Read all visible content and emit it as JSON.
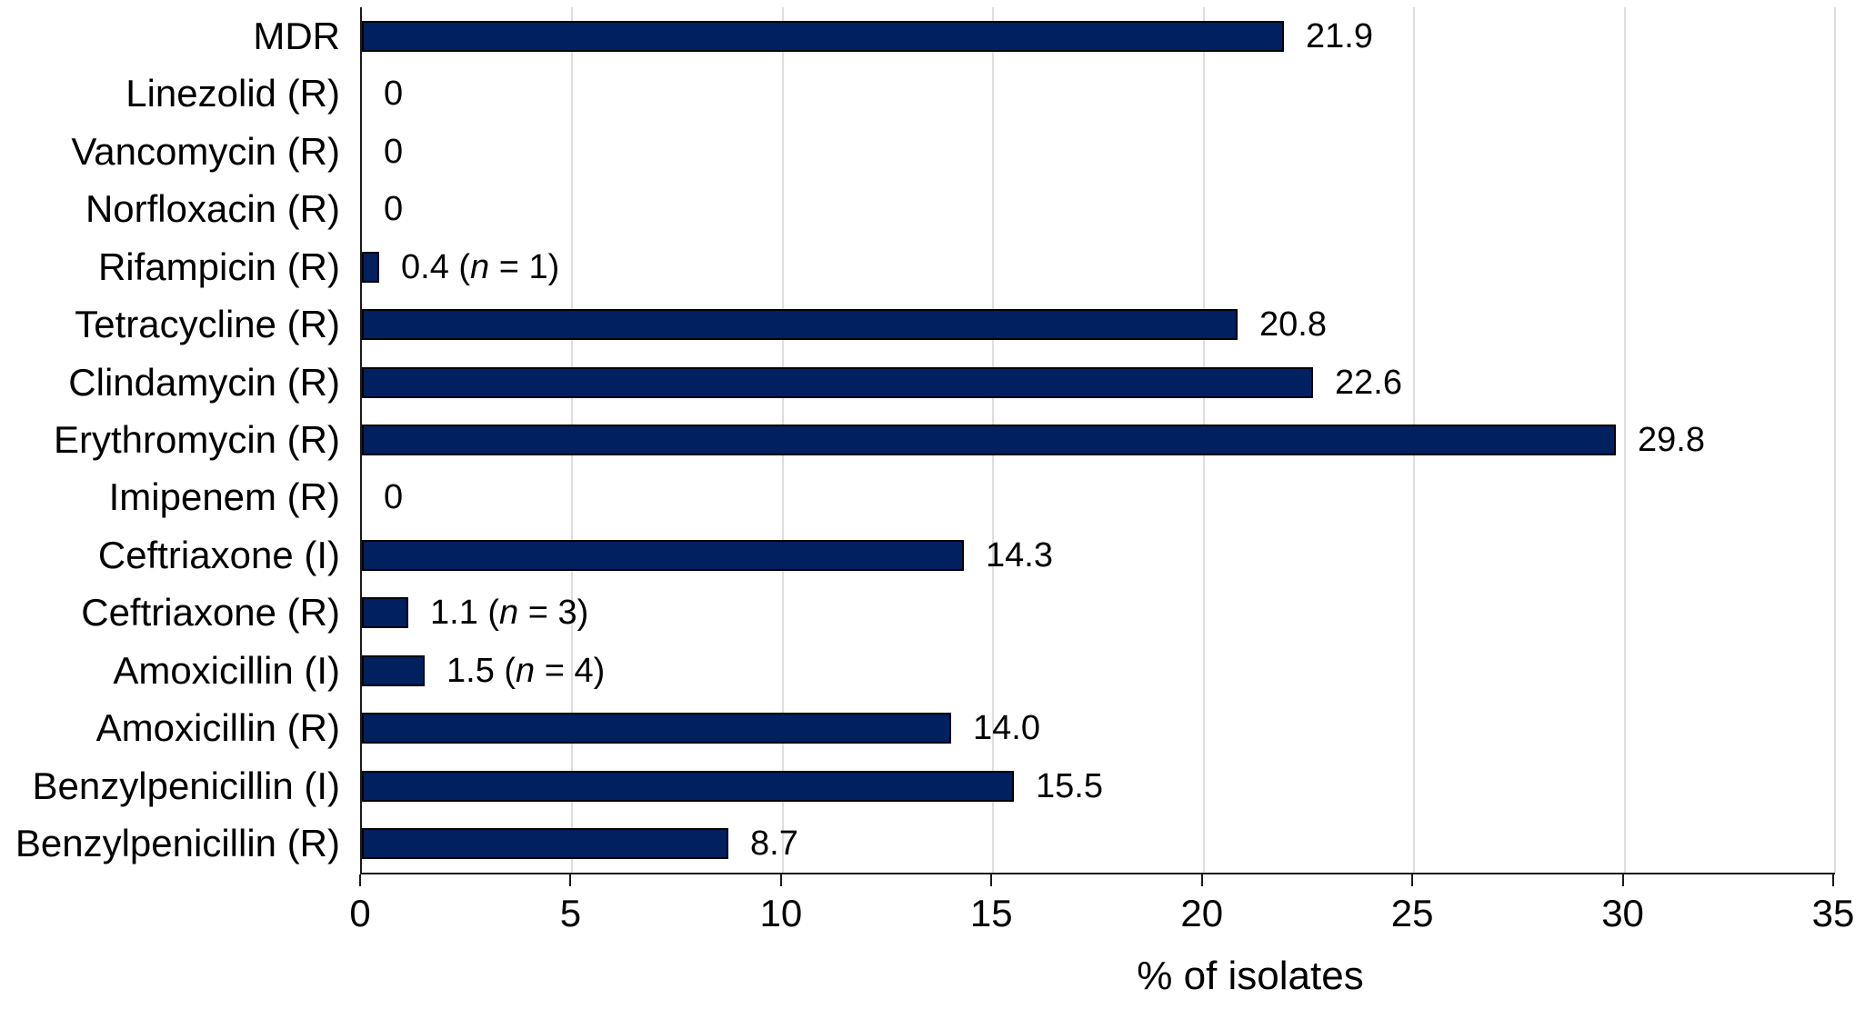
{
  "figure": {
    "background_color": "#FFFFFF",
    "text_color": "#000000"
  },
  "chart_data": {
    "type": "bar",
    "orientation": "horizontal",
    "title": "",
    "xlabel": "% of isolates",
    "ylabel": "",
    "xlim": [
      0,
      35
    ],
    "xticks": [
      0,
      5,
      10,
      15,
      20,
      25,
      30,
      35
    ],
    "grid": "vertical gridlines at every x tick, behind bars",
    "legend_position": "none",
    "bar_color": "#002060",
    "bar_border_color": "#000000",
    "gridline_color": "#DEDEDE",
    "axis_color": "#1A1A1A",
    "categories": [
      "MDR",
      "Linezolid (R)",
      "Vancomycin (R)",
      "Norfloxacin (R)",
      "Rifampicin (R)",
      "Tetracycline (R)",
      "Clindamycin (R)",
      "Erythromycin (R)",
      "Imipenem (R)",
      "Ceftriaxone (I)",
      "Ceftriaxone (R)",
      "Amoxicillin (I)",
      "Amoxicillin (R)",
      "Benzylpenicillin (I)",
      "Benzylpenicillin (R)"
    ],
    "rows": [
      {
        "category": "MDR",
        "value": 21.9,
        "value_text": "21.9",
        "n": null
      },
      {
        "category": "Linezolid (R)",
        "value": 0,
        "value_text": "0",
        "n": null
      },
      {
        "category": "Vancomycin (R)",
        "value": 0,
        "value_text": "0",
        "n": null
      },
      {
        "category": "Norfloxacin (R)",
        "value": 0,
        "value_text": "0",
        "n": null
      },
      {
        "category": "Rifampicin (R)",
        "value": 0.4,
        "value_text": "0.4",
        "n": 1
      },
      {
        "category": "Tetracycline (R)",
        "value": 20.8,
        "value_text": "20.8",
        "n": null
      },
      {
        "category": "Clindamycin (R)",
        "value": 22.6,
        "value_text": "22.6",
        "n": null
      },
      {
        "category": "Erythromycin (R)",
        "value": 29.8,
        "value_text": "29.8",
        "n": null
      },
      {
        "category": "Imipenem (R)",
        "value": 0,
        "value_text": "0",
        "n": null
      },
      {
        "category": "Ceftriaxone (I)",
        "value": 14.3,
        "value_text": "14.3",
        "n": null
      },
      {
        "category": "Ceftriaxone (R)",
        "value": 1.1,
        "value_text": "1.1",
        "n": 3
      },
      {
        "category": "Amoxicillin (I)",
        "value": 1.5,
        "value_text": "1.5",
        "n": 4
      },
      {
        "category": "Amoxicillin (R)",
        "value": 14.0,
        "value_text": "14.0",
        "n": null
      },
      {
        "category": "Benzylpenicillin (I)",
        "value": 15.5,
        "value_text": "15.5",
        "n": null
      },
      {
        "category": "Benzylpenicillin (R)",
        "value": 8.7,
        "value_text": "8.7",
        "n": null
      }
    ],
    "n_label_format": "value ( n = count )",
    "n_symbol_style": "italic"
  }
}
